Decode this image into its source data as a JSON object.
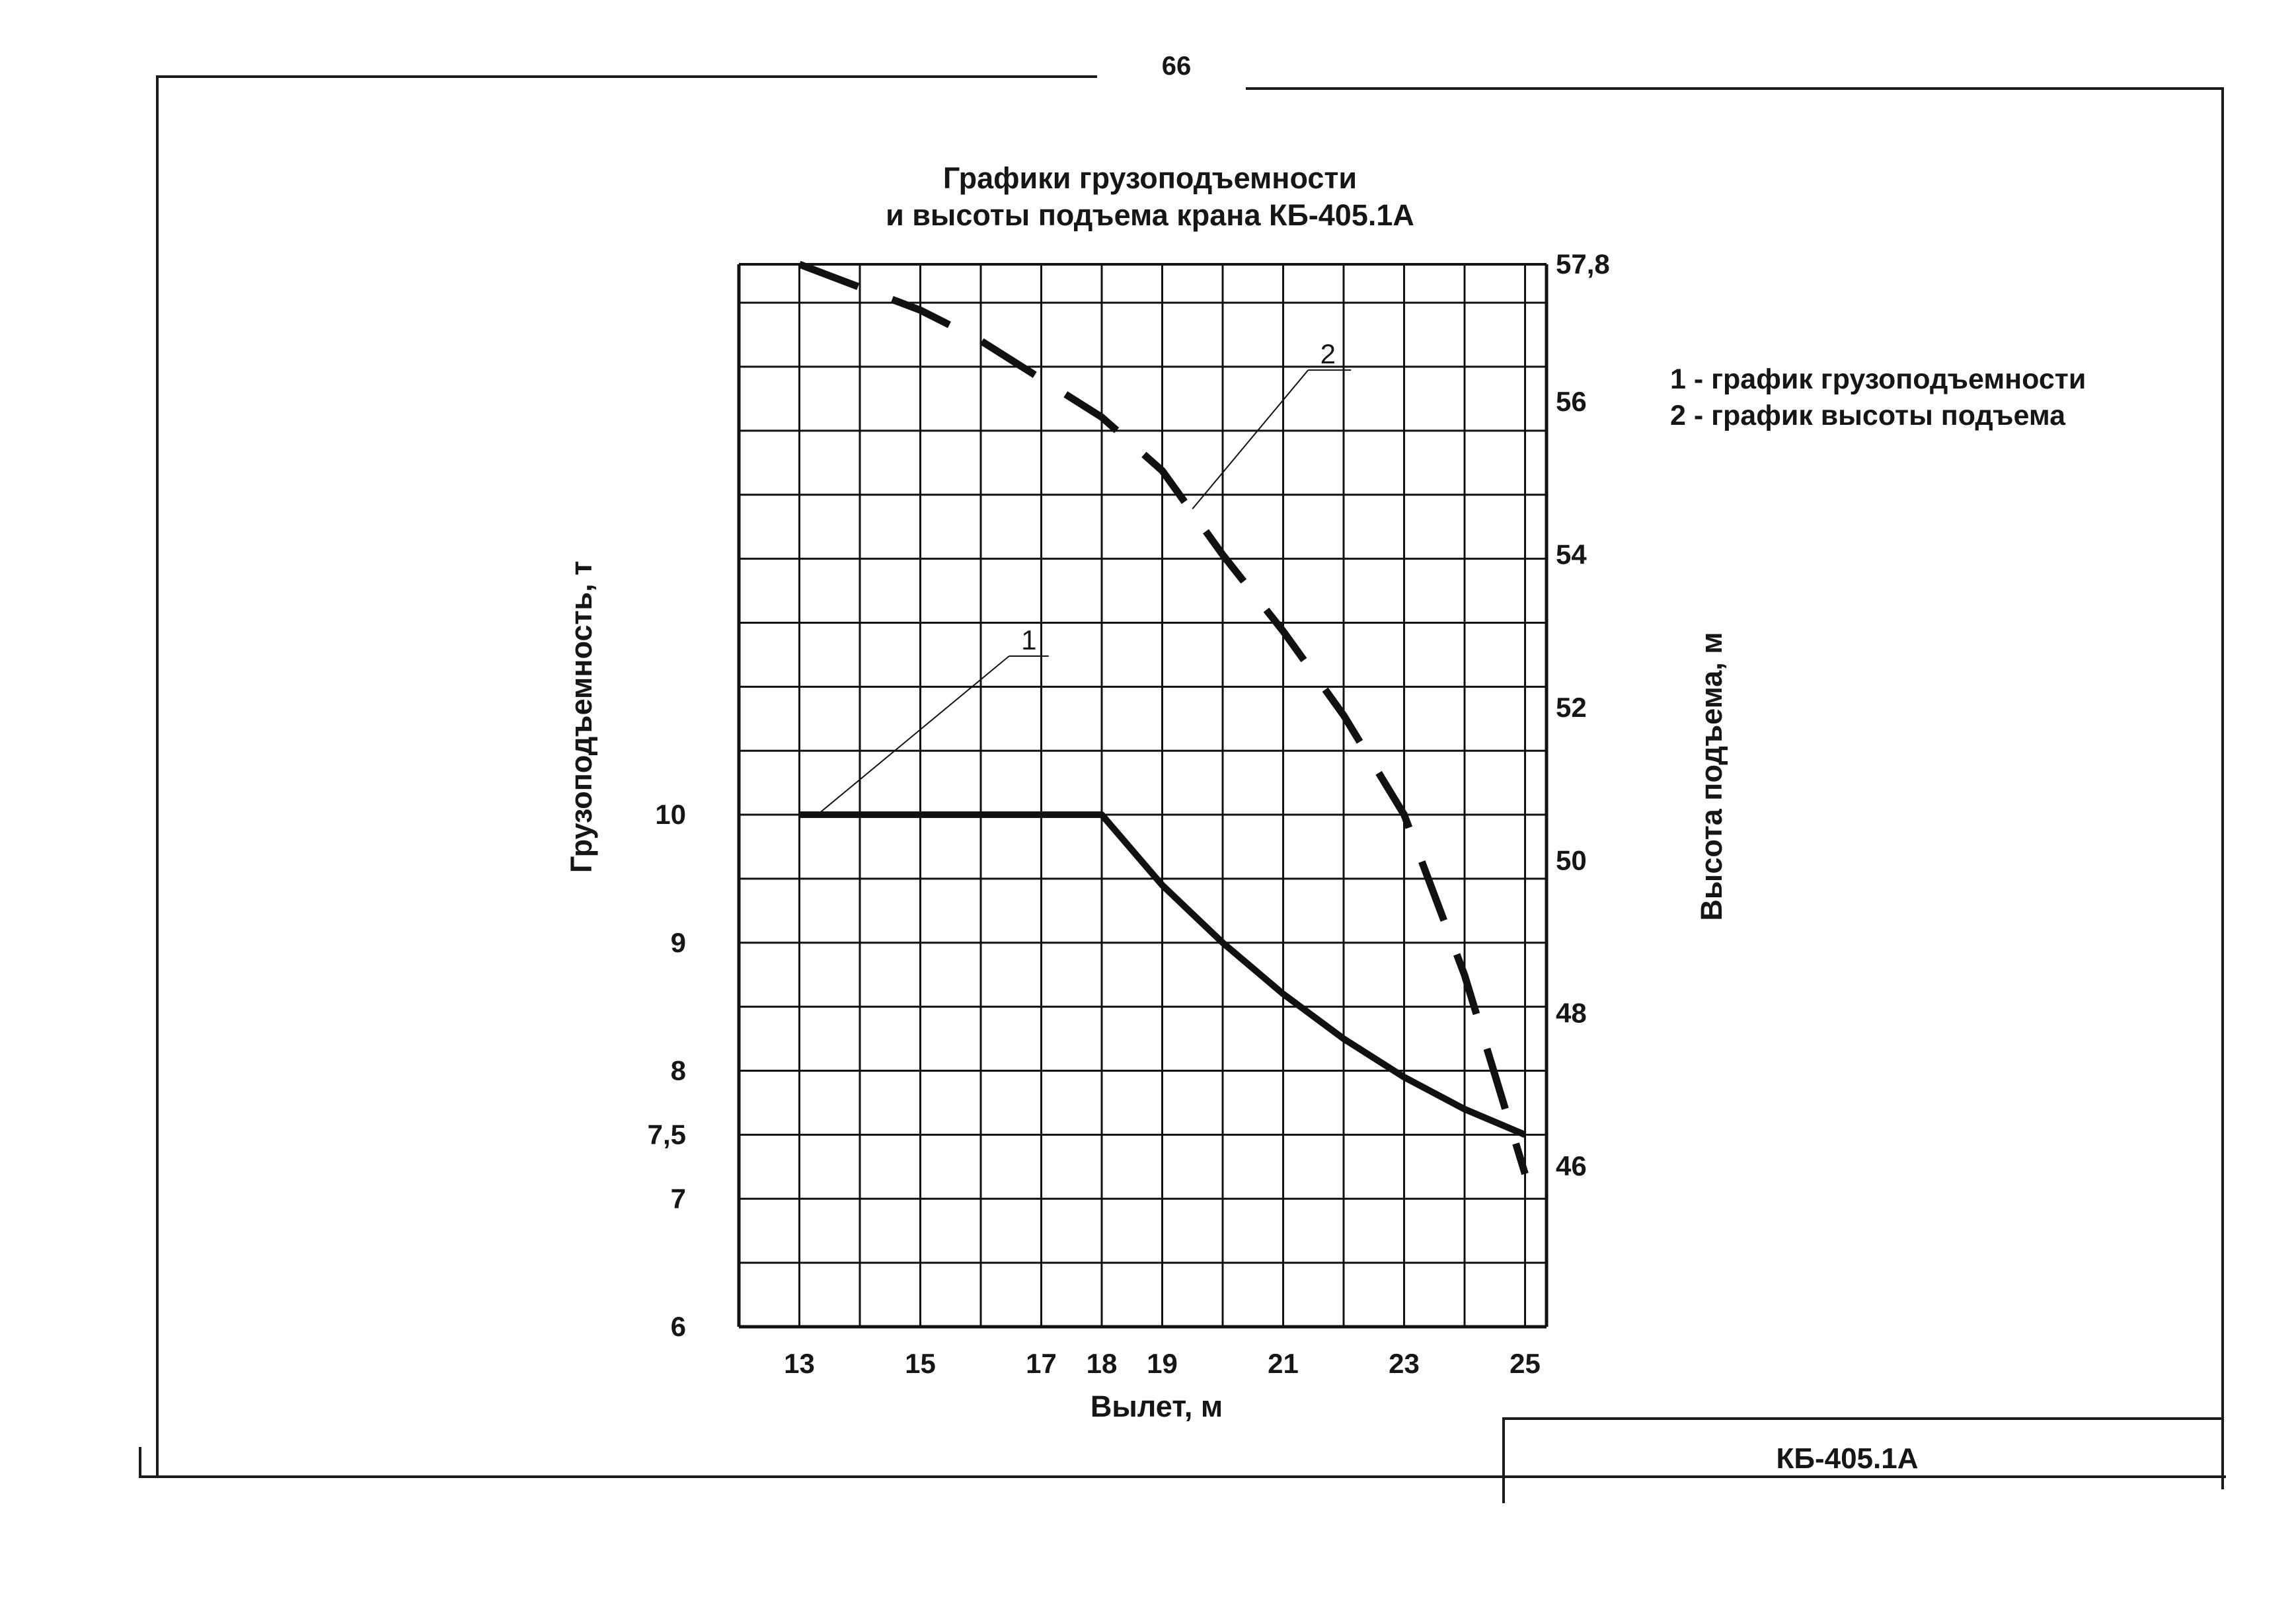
{
  "page": {
    "number": "66"
  },
  "title": {
    "line1": "Графики грузоподъемности",
    "line2": "и высоты подъема крана КБ-405.1А"
  },
  "legend": [
    {
      "text": "1 - график грузоподъемности"
    },
    {
      "text": "2 - график высоты подъема"
    }
  ],
  "stamp": {
    "text": "КБ-405.1А"
  },
  "colors": {
    "ink": "#111111",
    "paper": "#ffffff"
  },
  "chart_data": {
    "type": "line",
    "title": "Графики грузоподъемности и высоты подъема крана КБ-405.1А",
    "xlabel": "Вылет, м",
    "ylabel": "Грузоподъемность, т",
    "y2label": "Высота подъема, м",
    "xlim": [
      12,
      25
    ],
    "ylim": [
      6,
      14.3
    ],
    "y2lim": [
      43.9,
      57.8
    ],
    "grid": true,
    "x_ticks": [
      {
        "value": 13,
        "label": "13"
      },
      {
        "value": 15,
        "label": "15"
      },
      {
        "value": 17,
        "label": "17"
      },
      {
        "value": 18,
        "label": "18"
      },
      {
        "value": 19,
        "label": "19"
      },
      {
        "value": 21,
        "label": "21"
      },
      {
        "value": 23,
        "label": "23"
      },
      {
        "value": 25,
        "label": "25"
      }
    ],
    "y_ticks": [
      {
        "value": 6,
        "label": "6"
      },
      {
        "value": 7,
        "label": "7"
      },
      {
        "value": 7.5,
        "label": "7,5"
      },
      {
        "value": 8,
        "label": "8"
      },
      {
        "value": 9,
        "label": "9"
      },
      {
        "value": 10,
        "label": "10"
      }
    ],
    "y2_ticks": [
      {
        "value": 46,
        "label": "46"
      },
      {
        "value": 48,
        "label": "48"
      },
      {
        "value": 50,
        "label": "50"
      },
      {
        "value": 52,
        "label": "52"
      },
      {
        "value": 54,
        "label": "54"
      },
      {
        "value": 56,
        "label": "56"
      },
      {
        "value": 57.8,
        "label": "57,8"
      }
    ],
    "series": [
      {
        "name": "1",
        "axis": "left",
        "style": "solid",
        "x": [
          13,
          14,
          15,
          16,
          17,
          18,
          19,
          20,
          21,
          22,
          23,
          24,
          25
        ],
        "y": [
          10,
          10,
          10,
          10,
          10,
          10,
          9.45,
          9.0,
          8.6,
          8.25,
          7.95,
          7.7,
          7.5
        ]
      },
      {
        "name": "2",
        "axis": "right",
        "style": "dashed",
        "x": [
          13,
          14,
          15,
          16,
          17,
          18,
          19,
          20,
          21,
          22,
          23,
          24,
          25
        ],
        "y": [
          57.8,
          57.5,
          57.2,
          56.8,
          56.3,
          55.8,
          55.1,
          54.0,
          53.0,
          51.9,
          50.6,
          48.5,
          45.9
        ]
      }
    ],
    "annotations": [
      {
        "label": "1",
        "series": "1"
      },
      {
        "label": "2",
        "series": "2"
      }
    ]
  }
}
